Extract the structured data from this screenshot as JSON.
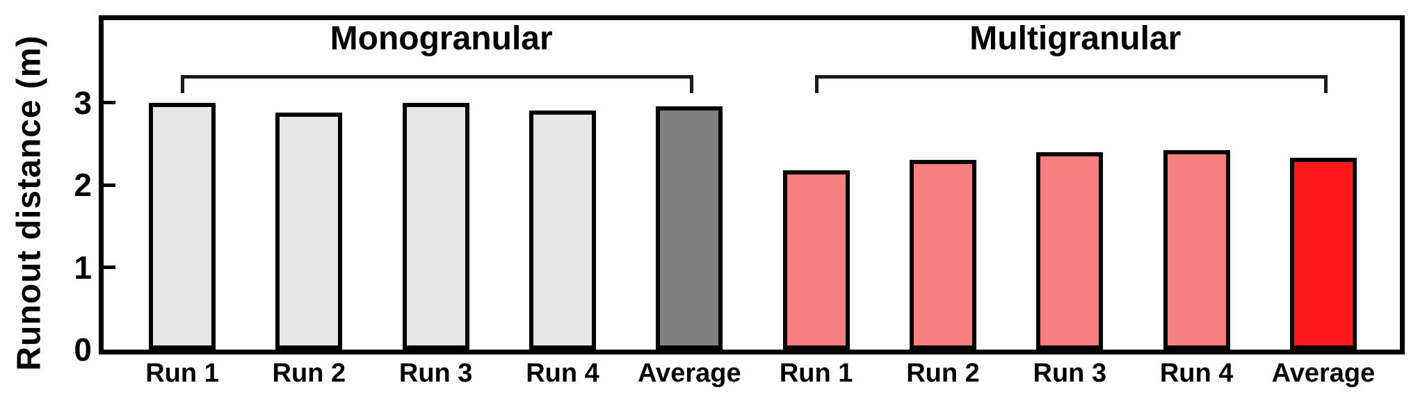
{
  "chart_data": {
    "type": "bar",
    "title": "",
    "ylabel": "Runout distance (m)",
    "xlabel": "",
    "ylim": [
      0,
      4
    ],
    "yticks": [
      "0",
      "1",
      "2",
      "3"
    ],
    "grid": false,
    "legend": "none",
    "frame_color": "#000000",
    "groups": [
      {
        "name": "Monogranular",
        "bars": [
          {
            "label": "Run 1",
            "value": 3.0,
            "color": "#e6e6e6"
          },
          {
            "label": "Run 2",
            "value": 2.88,
            "color": "#e6e6e6"
          },
          {
            "label": "Run 3",
            "value": 3.0,
            "color": "#e6e6e6"
          },
          {
            "label": "Run 4",
            "value": 2.9,
            "color": "#e6e6e6"
          },
          {
            "label": "Average",
            "value": 2.95,
            "color": "#7f7f7f"
          }
        ]
      },
      {
        "name": "Multigranular",
        "bars": [
          {
            "label": "Run 1",
            "value": 2.18,
            "color": "#f98080"
          },
          {
            "label": "Run 2",
            "value": 2.3,
            "color": "#f98080"
          },
          {
            "label": "Run 3",
            "value": 2.4,
            "color": "#f98080"
          },
          {
            "label": "Run 4",
            "value": 2.42,
            "color": "#f98080"
          },
          {
            "label": "Average",
            "value": 2.33,
            "color": "#fa1a1a"
          }
        ]
      }
    ]
  }
}
